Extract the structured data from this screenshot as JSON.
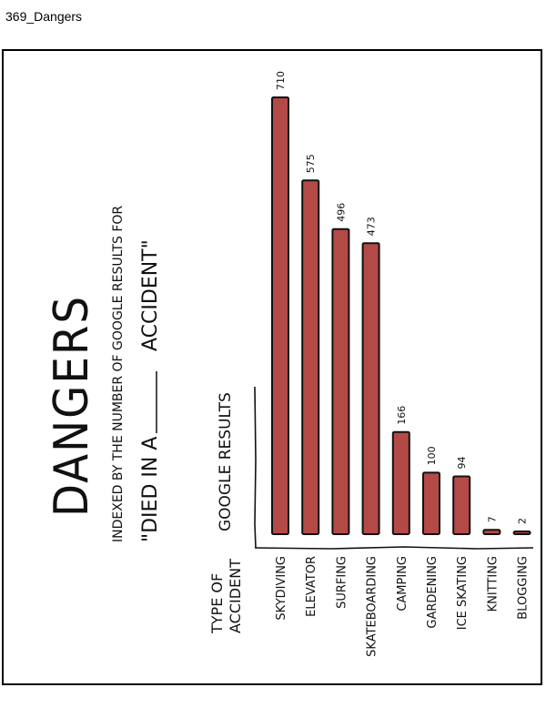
{
  "page": {
    "caption": "369_Dangers"
  },
  "colors": {
    "bar_fill": "#b34a48",
    "bar_stroke": "#111111",
    "ink": "#111111"
  },
  "chart_data": {
    "type": "bar",
    "orientation": "horizontal-bars-rotated-page",
    "title": "DANGERS",
    "subtitle": "INDEXED BY THE NUMBER OF GOOGLE RESULTS FOR",
    "query_prefix": "\"DIED IN A",
    "query_suffix": "ACCIDENT\"",
    "category_header_line1": "TYPE OF",
    "category_header_line2": "ACCIDENT",
    "value_header": "GOOGLE RESULTS",
    "categories": [
      "SKYDIVING",
      "ELEVATOR",
      "SURFING",
      "SKATEBOARDING",
      "CAMPING",
      "GARDENING",
      "ICE SKATING",
      "KNITTING",
      "BLOGGING"
    ],
    "values": [
      710,
      575,
      496,
      473,
      166,
      100,
      94,
      7,
      2
    ],
    "value_labels": [
      "710",
      "575",
      "496",
      "473",
      "166",
      "100",
      "94",
      "7",
      "2"
    ],
    "ylim": [
      0,
      710
    ],
    "grid": false
  }
}
